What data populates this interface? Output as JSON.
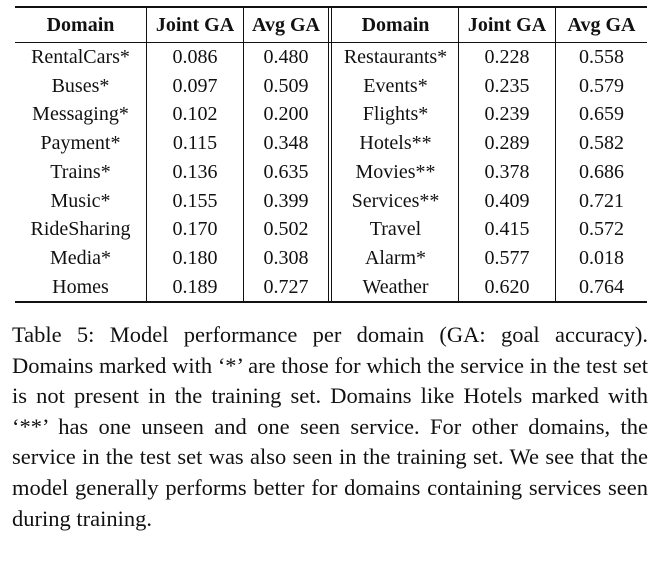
{
  "table": {
    "headers": [
      "Domain",
      "Joint GA",
      "Avg GA",
      "Domain",
      "Joint GA",
      "Avg GA"
    ],
    "rows": [
      [
        "RentalCars*",
        "0.086",
        "0.480",
        "Restaurants*",
        "0.228",
        "0.558"
      ],
      [
        "Buses*",
        "0.097",
        "0.509",
        "Events*",
        "0.235",
        "0.579"
      ],
      [
        "Messaging*",
        "0.102",
        "0.200",
        "Flights*",
        "0.239",
        "0.659"
      ],
      [
        "Payment*",
        "0.115",
        "0.348",
        "Hotels**",
        "0.289",
        "0.582"
      ],
      [
        "Trains*",
        "0.136",
        "0.635",
        "Movies**",
        "0.378",
        "0.686"
      ],
      [
        "Music*",
        "0.155",
        "0.399",
        "Services**",
        "0.409",
        "0.721"
      ],
      [
        "RideSharing",
        "0.170",
        "0.502",
        "Travel",
        "0.415",
        "0.572"
      ],
      [
        "Media*",
        "0.180",
        "0.308",
        "Alarm*",
        "0.577",
        "0.018"
      ],
      [
        "Homes",
        "0.189",
        "0.727",
        "Weather",
        "0.620",
        "0.764"
      ]
    ]
  },
  "caption": "Table 5: Model performance per domain (GA: goal accuracy). Domains marked with ‘*’ are those for which the service in the test set is not present in the training set. Domains like Hotels marked with ‘**’ has one unseen and one seen service. For other domains, the service in the test set was also seen in the training set. We see that the model generally performs better for domains containing services seen during training."
}
